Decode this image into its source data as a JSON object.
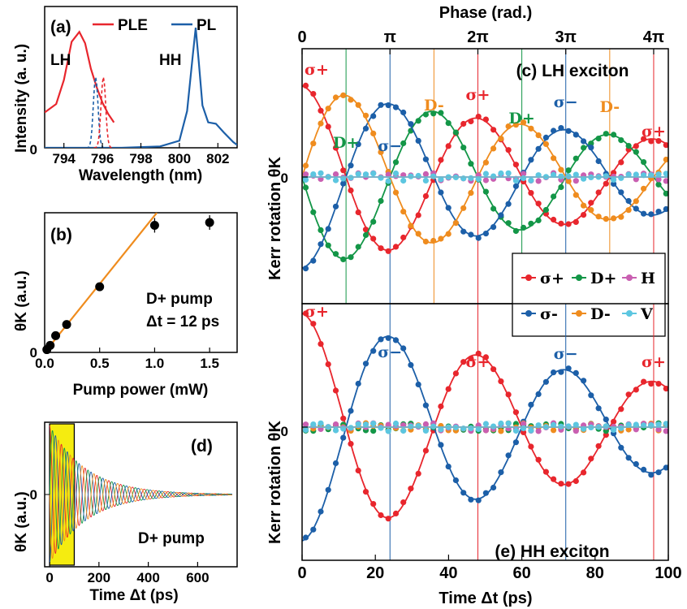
{
  "colors": {
    "red": "#e8262d",
    "green": "#139647",
    "blue": "#1c5fa8",
    "orange": "#ef8c1e",
    "magenta": "#c95fb1",
    "cyan": "#5cc6e0",
    "highlight": "#f5ec10"
  },
  "chart_data": [
    {
      "id": "a",
      "type": "line",
      "panel_label": "(a)",
      "xlabel": "Wavelength (nm)",
      "ylabel": "Intensity (a. u.)",
      "xlim": [
        793,
        803
      ],
      "ylim": [
        0,
        1
      ],
      "xticks": [
        "794",
        "796",
        "798",
        "800",
        "802"
      ],
      "yticks": [
        "0"
      ],
      "series": [
        {
          "name": "PLE",
          "color": "red",
          "x": [
            793,
            793.6,
            794,
            794.4,
            794.8,
            795.1,
            795.4,
            795.7,
            796,
            796.3,
            796.6
          ],
          "y": [
            0.25,
            0.31,
            0.48,
            0.75,
            0.82,
            0.74,
            0.56,
            0.43,
            0.32,
            0.24,
            0.18
          ]
        },
        {
          "name": "PL",
          "color": "blue",
          "x": [
            793,
            795,
            797,
            799,
            800,
            800.4,
            800.7,
            800.85,
            801,
            801.2,
            801.5,
            801.9,
            802.3,
            802.8,
            803
          ],
          "y": [
            0.0,
            0.0,
            0.0,
            0.01,
            0.05,
            0.26,
            0.66,
            0.85,
            0.62,
            0.3,
            0.18,
            0.17,
            0.11,
            0.04,
            0.02
          ]
        }
      ],
      "annotations": [
        "LH",
        "HH"
      ]
    },
    {
      "id": "b",
      "type": "scatter",
      "panel_label": "(b)",
      "xlabel": "Pump power (mW)",
      "ylabel": "θK (a.u.)",
      "xlim": [
        0,
        1.75
      ],
      "ylim": [
        0,
        1
      ],
      "xticks": [
        "0.0",
        "0.5",
        "1.0",
        "1.5"
      ],
      "yticks": [
        "0"
      ],
      "points": [
        {
          "x": 0.02,
          "y": 0.02
        },
        {
          "x": 0.05,
          "y": 0.05
        },
        {
          "x": 0.1,
          "y": 0.12
        },
        {
          "x": 0.2,
          "y": 0.2
        },
        {
          "x": 0.5,
          "y": 0.47
        },
        {
          "x": 1.0,
          "y": 0.91
        },
        {
          "x": 1.5,
          "y": 0.93
        }
      ],
      "fit_line": {
        "x": [
          0,
          1.02
        ],
        "y": [
          0,
          1.0
        ]
      },
      "annotations": [
        "D+ pump",
        "Δt = 12 ps"
      ]
    },
    {
      "id": "d",
      "type": "line",
      "panel_label": "(d)",
      "xlabel": "Time Δt (ps)",
      "ylabel": "θK (a.u.)",
      "xlim": [
        -20,
        760
      ],
      "xticks": [
        "0",
        "200",
        "400",
        "600"
      ],
      "yticks": [
        "0"
      ],
      "highlight_range": [
        0,
        100
      ],
      "annotation": "D+ pump"
    },
    {
      "id": "c",
      "type": "line",
      "panel_label": "(c) LH exciton",
      "xlabel": "",
      "ylabel": "Kerr rotation θK",
      "top_axis_label": "Phase (rad.)",
      "top_ticks": [
        "0",
        "π",
        "2π",
        "3π",
        "4π"
      ],
      "xlim": [
        0,
        100
      ],
      "period_ps": 48,
      "yticks": [
        "0"
      ],
      "series": [
        {
          "name": "σ+",
          "color": "red",
          "phase": 0
        },
        {
          "name": "D+",
          "color": "green",
          "phase": 1.5708
        },
        {
          "name": "σ−",
          "color": "blue",
          "phase": 3.1416
        },
        {
          "name": "D−",
          "color": "orange",
          "phase": 4.7124
        },
        {
          "name": "H",
          "color": "magenta",
          "phase": null
        },
        {
          "name": "V",
          "color": "cyan",
          "phase": null
        }
      ],
      "peak_labels": [
        {
          "text": "σ+",
          "color": "red",
          "t": 0
        },
        {
          "text": "D+",
          "color": "green",
          "t": 12
        },
        {
          "text": "σ−",
          "color": "blue",
          "t": 24
        },
        {
          "text": "D-",
          "color": "orange",
          "t": 36
        },
        {
          "text": "σ+",
          "color": "red",
          "t": 48
        },
        {
          "text": "D+",
          "color": "green",
          "t": 60
        },
        {
          "text": "σ−",
          "color": "blue",
          "t": 72
        },
        {
          "text": "D-",
          "color": "orange",
          "t": 84
        },
        {
          "text": "σ+",
          "color": "red",
          "t": 96
        }
      ],
      "legend": [
        "σ+",
        "D+",
        "H",
        "σ-",
        "D-",
        "V"
      ]
    },
    {
      "id": "e",
      "type": "line",
      "panel_label": "(e) HH exciton",
      "xlabel": "Time Δt (ps)",
      "ylabel": "Kerr rotation θK",
      "xlim": [
        0,
        100
      ],
      "xticks": [
        "0",
        "20",
        "40",
        "60",
        "80",
        "100"
      ],
      "yticks": [
        "0"
      ],
      "series": [
        {
          "name": "σ+",
          "color": "red",
          "phase": 0
        },
        {
          "name": "σ−",
          "color": "blue",
          "phase": 3.1416
        },
        {
          "name": "D+",
          "color": "green",
          "phase": null
        },
        {
          "name": "D−",
          "color": "orange",
          "phase": null
        },
        {
          "name": "H",
          "color": "magenta",
          "phase": null
        },
        {
          "name": "V",
          "color": "cyan",
          "phase": null
        }
      ],
      "peak_labels": [
        {
          "text": "σ+",
          "color": "red",
          "t": 0
        },
        {
          "text": "σ−",
          "color": "blue",
          "t": 24
        },
        {
          "text": "σ+",
          "color": "red",
          "t": 48
        },
        {
          "text": "σ−",
          "color": "blue",
          "t": 72
        },
        {
          "text": "σ+",
          "color": "red",
          "t": 96
        }
      ]
    }
  ]
}
